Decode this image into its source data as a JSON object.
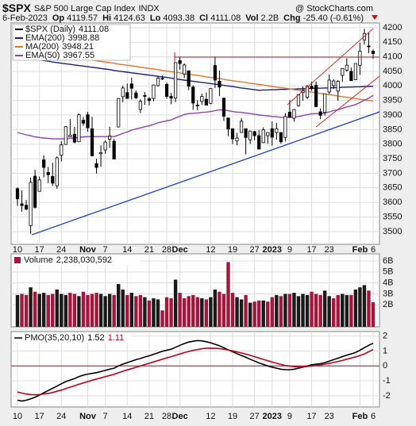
{
  "header": {
    "symbol": "$SPX",
    "name": "S&P 500 Large Cap Index",
    "exchange": "INDX",
    "date": "6-Feb-2023",
    "op_label": "Op",
    "hi_label": "Hi",
    "lo_label": "Lo",
    "cl_label": "Cl",
    "vol_label": "Vol",
    "vol": "2.2B",
    "chg_label": "Chg",
    "chg": "-25.40 (-0.61%)",
    "watermark": "@ StockCharts.com"
  },
  "chart_data": [
    {
      "type": "candlestick",
      "series_label": "$SPX (Daily)",
      "color": "#000000",
      "grid": true,
      "legend": "top-left",
      "categories": [
        "10",
        null,
        null,
        null,
        null,
        "17",
        null,
        null,
        null,
        null,
        "24",
        null,
        null,
        null,
        null,
        null,
        "Nov",
        null,
        null,
        null,
        "7",
        null,
        null,
        null,
        null,
        "14",
        null,
        null,
        null,
        null,
        "21",
        null,
        null,
        null,
        "28",
        null,
        null,
        "Dec",
        null,
        null,
        null,
        null,
        null,
        null,
        "12",
        null,
        null,
        null,
        null,
        "19",
        null,
        null,
        null,
        null,
        "27",
        null,
        null,
        null,
        "2023",
        null,
        null,
        null,
        "9",
        null,
        null,
        null,
        null,
        "17",
        null,
        null,
        null,
        "23",
        null,
        null,
        null,
        null,
        null,
        null,
        "Feb",
        null,
        null,
        "6"
      ],
      "open": [
        3647,
        3595,
        3590,
        3520,
        3690,
        3638,
        3746,
        3703,
        3689,
        3657,
        3762,
        3799,
        3825,
        3834,
        3808,
        3882,
        3901,
        3853,
        3733,
        3767,
        3780,
        3817,
        3810,
        3859,
        3963,
        3977,
        4007,
        3976,
        3919,
        3967,
        3956,
        3957,
        4001,
        4024,
        4005,
        3964,
        3958,
        4087,
        4041,
        4052,
        3996,
        3934,
        3947,
        3954,
        3940,
        4070,
        4016,
        3958,
        3890,
        3853,
        3811,
        3840,
        3853,
        3815,
        3843,
        3829,
        3805,
        3829,
        3853,
        3840,
        3840,
        3823,
        3910,
        3889,
        3932,
        3977,
        3961,
        3999,
        4002,
        3911,
        3909,
        3979,
        4001,
        3982,
        4036,
        4054,
        4050,
        4021,
        4071,
        4158,
        4137,
        4119.57
      ],
      "high": [
        3652,
        3641,
        3608,
        3685,
        3712,
        3689,
        3762,
        3722,
        3736,
        3758,
        3810,
        3862,
        3886,
        3859,
        3905,
        3893,
        3911,
        3894,
        3750,
        3796,
        3813,
        3860,
        3818,
        3958,
        4001,
        4008,
        4028,
        3984,
        3954,
        3979,
        3962,
        4005,
        4034,
        4035,
        4012,
        3976,
        4080,
        4101,
        4077,
        4052,
        4002,
        3951,
        3974,
        3977,
        3991,
        4101,
        4053,
        3959,
        3890,
        3854,
        3839,
        3889,
        3853,
        3846,
        3846,
        3849,
        3858,
        3840,
        3878,
        3873,
        3840,
        3907,
        3951,
        3920,
        3971,
        3998,
        4003,
        4015,
        4015,
        3923,
        3973,
        4039,
        4023,
        4020,
        4061,
        4095,
        4063,
        4077,
        4148,
        4196,
        4183,
        4124.63
      ],
      "low": [
        3588,
        3568,
        3573,
        3492,
        3579,
        3638,
        3686,
        3666,
        3656,
        3647,
        3741,
        3799,
        3824,
        3803,
        3808,
        3863,
        3843,
        3758,
        3699,
        3722,
        3767,
        3787,
        3748,
        3859,
        3944,
        3956,
        3954,
        3955,
        3907,
        3935,
        3933,
        3947,
        3998,
        4020,
        3956,
        3937,
        3944,
        4056,
        4027,
        3985,
        3918,
        3916,
        3935,
        3933,
        3937,
        3993,
        3965,
        3880,
        3827,
        3800,
        3796,
        3839,
        3765,
        3801,
        3813,
        3783,
        3805,
        3801,
        3795,
        3815,
        3802,
        3809,
        3890,
        3877,
        3929,
        3949,
        3954,
        3984,
        3927,
        3886,
        3898,
        3972,
        3990,
        3949,
        4014,
        4049,
        4017,
        4021,
        4038,
        4142,
        4112,
        4093.38
      ],
      "close": [
        3612,
        3589,
        3577,
        3669,
        3583,
        3677,
        3720,
        3695,
        3666,
        3753,
        3798,
        3860,
        3831,
        3807,
        3901,
        3872,
        3856,
        3760,
        3720,
        3771,
        3807,
        3828,
        3749,
        3957,
        3993,
        3957,
        3992,
        3959,
        3947,
        3965,
        3950,
        4003,
        4027,
        4026,
        3964,
        3958,
        4080,
        4077,
        4072,
        3999,
        3941,
        3933,
        3964,
        3934,
        3991,
        4020,
        3996,
        3896,
        3852,
        3818,
        3821,
        3879,
        3823,
        3845,
        3829,
        3783,
        3849,
        3840,
        3824,
        3853,
        3808,
        3895,
        3893,
        3919,
        3970,
        3983,
        3999,
        3991,
        3929,
        3899,
        3973,
        4020,
        4017,
        4016,
        4060,
        4071,
        4018,
        4077,
        4119,
        4180,
        4136,
        4111.08
      ],
      "overlays": [
        {
          "name": "EMA(200)",
          "color": "#1c1c8a",
          "values": [
            4099,
            4097,
            4095,
            4093,
            4091,
            4089,
            4087,
            4085,
            4082,
            4080,
            4078,
            4076,
            4074,
            4072,
            4070,
            4068,
            4066,
            4064,
            4062,
            4060,
            4058,
            4056,
            4053,
            4051,
            4049,
            4047,
            4045,
            4043,
            4041,
            4039,
            4037,
            4035,
            4033,
            4031,
            4029,
            4027,
            4024,
            4022,
            4020,
            4018,
            4016,
            4014,
            4012,
            4010,
            4008,
            4006,
            4004,
            4002,
            4000,
            3998,
            3995,
            3993,
            3991,
            3989,
            3987,
            3985,
            3986,
            3986,
            3987,
            3987,
            3988,
            3988,
            3989,
            3989,
            3990,
            3990,
            3991,
            3991,
            3992,
            3992,
            3993,
            3993,
            3994,
            3994,
            3995,
            3996,
            3996,
            3997,
            3997,
            3998,
            3998,
            3998.88
          ]
        },
        {
          "name": "MA(200)",
          "color": "#e8742a",
          "values": [
            4126,
            4124,
            4122,
            4119,
            4117,
            4115,
            4113,
            4111,
            4108,
            4106,
            4104,
            4102,
            4100,
            4097,
            4095,
            4093,
            4091,
            4089,
            4086,
            4084,
            4082,
            4080,
            4078,
            4075,
            4073,
            4071,
            4069,
            4067,
            4064,
            4062,
            4060,
            4058,
            4056,
            4053,
            4051,
            4049,
            4047,
            4045,
            4042,
            4040,
            4038,
            4036,
            4034,
            4031,
            4029,
            4027,
            4025,
            4023,
            4020,
            4018,
            4016,
            4014,
            4012,
            4009,
            4007,
            4005,
            4003,
            4001,
            3998,
            3996,
            3994,
            3992,
            3990,
            3987,
            3985,
            3983,
            3981,
            3979,
            3976,
            3974,
            3972,
            3970,
            3968,
            3965,
            3963,
            3961,
            3959,
            3957,
            3954,
            3952,
            3950,
            3948.21
          ]
        },
        {
          "name": "EMA(50)",
          "color": "#9440b4",
          "values": [
            3840,
            3836,
            3832,
            3829,
            3825,
            3823,
            3821,
            3820,
            3818,
            3818,
            3818,
            3819,
            3820,
            3821,
            3823,
            3825,
            3826,
            3826,
            3826,
            3826,
            3826,
            3827,
            3826,
            3831,
            3837,
            3842,
            3848,
            3852,
            3856,
            3860,
            3863,
            3868,
            3873,
            3877,
            3880,
            3883,
            3890,
            3896,
            3902,
            3905,
            3906,
            3907,
            3909,
            3910,
            3912,
            3915,
            3918,
            3917,
            3915,
            3912,
            3910,
            3909,
            3907,
            3905,
            3903,
            3900,
            3899,
            3897,
            3895,
            3894,
            3892,
            3892,
            3892,
            3893,
            3895,
            3898,
            3901,
            3904,
            3905,
            3905,
            3907,
            3911,
            3915,
            3918,
            3923,
            3928,
            3931,
            3936,
            3943,
            3951,
            3958,
            3967.55
          ]
        }
      ],
      "ylim": [
        3456,
        4216
      ],
      "yticks": [
        4200,
        4150,
        4100,
        4050,
        4000,
        3950,
        3900,
        3850,
        3800,
        3750,
        3700,
        3650,
        3600,
        3550,
        3500
      ]
    },
    {
      "type": "bar",
      "title": "Volume",
      "title_value": "2,238,030,592",
      "up_color": "#1a1a1a",
      "down_color": "#a3173f",
      "grid": true,
      "values": [
        2.9,
        3.0,
        2.9,
        3.6,
        3.2,
        3.0,
        3.1,
        2.9,
        3.0,
        3.4,
        3.0,
        2.9,
        3.1,
        3.0,
        2.8,
        3.2,
        2.9,
        3.0,
        3.1,
        3.0,
        2.8,
        3.0,
        2.9,
        3.9,
        3.4,
        2.9,
        3.1,
        2.8,
        2.9,
        2.7,
        2.4,
        2.6,
        2.5,
        1.5,
        2.7,
        2.6,
        4.3,
        3.1,
        2.6,
        2.8,
        2.9,
        2.7,
        2.6,
        2.5,
        2.7,
        3.4,
        3.2,
        3.0,
        5.9,
        3.1,
        2.7,
        2.5,
        2.9,
        2.2,
        2.3,
        2.4,
        2.4,
        2.3,
        2.7,
        2.9,
        2.8,
        3.0,
        3.0,
        3.1,
        2.8,
        3.0,
        2.9,
        3.2,
        3.0,
        2.9,
        3.3,
        2.8,
        2.6,
        2.9,
        3.0,
        2.9,
        2.9,
        3.4,
        3.6,
        3.8,
        3.3,
        2.238
      ],
      "ylim": [
        0,
        6.65
      ],
      "yticks": [
        {
          "value": 6,
          "label": "6B"
        },
        {
          "value": 5,
          "label": "5B"
        },
        {
          "value": 4,
          "label": "4B"
        },
        {
          "value": 3,
          "label": "3B"
        },
        {
          "value": 2,
          "label": "2B"
        }
      ]
    },
    {
      "type": "line",
      "title": "PMO(35,20,10)",
      "zero_line_color": "#c00020",
      "grid": true,
      "categories": [
        "10",
        null,
        null,
        null,
        null,
        "17",
        null,
        null,
        null,
        null,
        "24",
        null,
        null,
        null,
        null,
        null,
        "Nov",
        null,
        null,
        null,
        "7",
        null,
        null,
        null,
        null,
        "14",
        null,
        null,
        null,
        null,
        "21",
        null,
        null,
        null,
        "28",
        null,
        null,
        "Dec",
        null,
        null,
        null,
        null,
        null,
        null,
        "12",
        null,
        null,
        null,
        null,
        "19",
        null,
        null,
        null,
        null,
        "27",
        null,
        null,
        null,
        "2023",
        null,
        null,
        null,
        "9",
        null,
        null,
        null,
        null,
        "17",
        null,
        null,
        null,
        "23",
        null,
        null,
        null,
        null,
        null,
        null,
        "Feb",
        null,
        null,
        "6"
      ],
      "series": [
        {
          "color": "#000000",
          "values": [
            -2.3,
            -2.35,
            -2.3,
            -2.2,
            -2.1,
            -1.95,
            -1.8,
            -1.65,
            -1.5,
            -1.35,
            -1.2,
            -1.05,
            -0.95,
            -0.85,
            -0.72,
            -0.62,
            -0.55,
            -0.5,
            -0.45,
            -0.38,
            -0.3,
            -0.22,
            -0.15,
            0,
            0.12,
            0.22,
            0.32,
            0.42,
            0.5,
            0.6,
            0.68,
            0.78,
            0.88,
            0.98,
            1.05,
            1.12,
            1.25,
            1.38,
            1.5,
            1.6,
            1.65,
            1.7,
            1.68,
            1.62,
            1.55,
            1.45,
            1.35,
            1.22,
            1.08,
            0.95,
            0.82,
            0.7,
            0.58,
            0.45,
            0.32,
            0.2,
            0.1,
            0,
            -0.08,
            -0.15,
            -0.22,
            -0.25,
            -0.25,
            -0.22,
            -0.15,
            -0.08,
            0,
            0.08,
            0.12,
            0.15,
            0.22,
            0.32,
            0.42,
            0.52,
            0.62,
            0.72,
            0.8,
            0.9,
            1.05,
            1.22,
            1.38,
            1.52
          ]
        },
        {
          "color": "#c00020",
          "values": [
            -1.75,
            -1.82,
            -1.88,
            -1.92,
            -1.93,
            -1.92,
            -1.88,
            -1.84,
            -1.78,
            -1.7,
            -1.62,
            -1.52,
            -1.42,
            -1.33,
            -1.23,
            -1.14,
            -1.05,
            -0.96,
            -0.88,
            -0.8,
            -0.72,
            -0.64,
            -0.56,
            -0.46,
            -0.36,
            -0.27,
            -0.18,
            -0.09,
            0,
            0.09,
            0.18,
            0.27,
            0.36,
            0.45,
            0.54,
            0.62,
            0.71,
            0.8,
            0.89,
            0.97,
            1.04,
            1.1,
            1.15,
            1.18,
            1.19,
            1.18,
            1.16,
            1.12,
            1.07,
            1.01,
            0.94,
            0.87,
            0.79,
            0.71,
            0.62,
            0.53,
            0.44,
            0.35,
            0.26,
            0.18,
            0.1,
            0.03,
            -0.02,
            -0.05,
            -0.06,
            -0.06,
            -0.04,
            -0.01,
            0.03,
            0.07,
            0.12,
            0.17,
            0.23,
            0.3,
            0.37,
            0.45,
            0.53,
            0.61,
            0.7,
            0.8,
            0.95,
            1.11
          ]
        }
      ],
      "ylim": [
        -2.75,
        2.3
      ],
      "yticks": [
        2,
        1,
        0,
        -1,
        -2
      ]
    }
  ]
}
